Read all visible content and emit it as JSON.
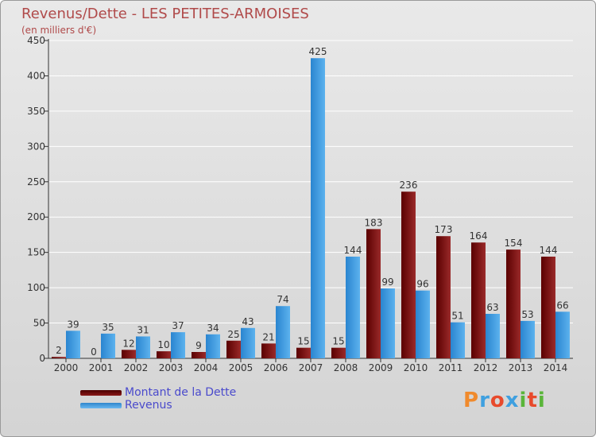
{
  "header": {
    "title": "Revenus/Dette - LES PETITES-ARMOISES",
    "subtitle": "(en milliers d'€)"
  },
  "legend": {
    "items": [
      {
        "label": "Montant de la Dette",
        "color": "#6e0000"
      },
      {
        "label": "Revenus",
        "color": "#3f9be0"
      }
    ]
  },
  "logo": {
    "text": "Proxiti",
    "colors": [
      "#f08a2c",
      "#3fa0e0",
      "#e84a2c",
      "#3fa0e0",
      "#5ab53a",
      "#e84a2c",
      "#5ab53a"
    ]
  },
  "chart_data": {
    "type": "bar",
    "title": "Revenus/Dette - LES PETITES-ARMOISES",
    "subtitle": "(en milliers d'€)",
    "categories": [
      "2000",
      "2001",
      "2002",
      "2003",
      "2004",
      "2005",
      "2006",
      "2007",
      "2008",
      "2009",
      "2010",
      "2011",
      "2012",
      "2013",
      "2014"
    ],
    "series": [
      {
        "name": "Montant de la Dette",
        "color": "#7a0d0d",
        "values": [
          2,
          0,
          12,
          10,
          9,
          25,
          21,
          15,
          15,
          183,
          236,
          173,
          164,
          154,
          144
        ]
      },
      {
        "name": "Revenus",
        "color": "#3f9be0",
        "values": [
          39,
          35,
          31,
          37,
          34,
          43,
          74,
          425,
          144,
          99,
          96,
          51,
          63,
          53,
          66
        ]
      }
    ],
    "ylim": [
      0,
      450
    ],
    "yticks": [
      0,
      50,
      100,
      150,
      200,
      250,
      300,
      350,
      400,
      450
    ],
    "grid": true,
    "legend_position": "bottom-left"
  }
}
